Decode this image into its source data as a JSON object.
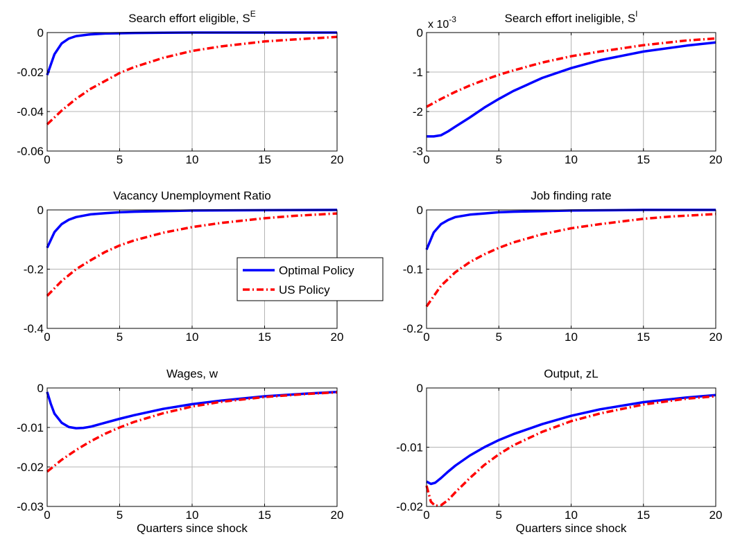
{
  "colors": {
    "optimal": "#0000ff",
    "us": "#ff0000",
    "grid": "#b4b4b4",
    "axis": "#000000",
    "background": "#ffffff"
  },
  "legend": {
    "placement": "between middle-row panels",
    "entries": [
      {
        "label": "Optimal Policy",
        "style": "solid",
        "color": "#0000ff"
      },
      {
        "label": "US Policy",
        "style": "dash-dot",
        "color": "#ff0000"
      }
    ]
  },
  "chart_data": [
    {
      "type": "line",
      "title": "Search effort eligible, S",
      "title_superscript": "E",
      "xlabel": "",
      "xlim": [
        0,
        20
      ],
      "xticks": [
        0,
        5,
        10,
        15,
        20
      ],
      "ylim": [
        -0.06,
        0
      ],
      "yticks": [
        -0.06,
        -0.04,
        -0.02,
        0
      ],
      "ytick_labels": [
        "-0.06",
        "-0.04",
        "-0.02",
        "0"
      ],
      "grid": true,
      "series": [
        {
          "name": "Optimal Policy",
          "x": [
            0,
            0.5,
            1,
            1.5,
            2,
            3,
            4,
            6,
            8,
            10,
            15,
            20
          ],
          "y": [
            -0.0215,
            -0.011,
            -0.0055,
            -0.003,
            -0.0018,
            -0.0009,
            -0.0005,
            -0.0002,
            -0.0001,
            0,
            0,
            0
          ]
        },
        {
          "name": "US Policy",
          "x": [
            0,
            1,
            2,
            3,
            4,
            5,
            6,
            8,
            10,
            12,
            15,
            17,
            20
          ],
          "y": [
            -0.0465,
            -0.0395,
            -0.0335,
            -0.0285,
            -0.0245,
            -0.0205,
            -0.0175,
            -0.0128,
            -0.0093,
            -0.007,
            -0.0045,
            -0.0035,
            -0.0022
          ]
        }
      ]
    },
    {
      "type": "line",
      "title": "Search effort ineligible, S",
      "title_superscript": "I",
      "axis_multiplier": "x 10",
      "axis_multiplier_exponent": "-3",
      "xlabel": "",
      "xlim": [
        0,
        20
      ],
      "xticks": [
        0,
        5,
        10,
        15,
        20
      ],
      "ylim": [
        -3,
        0
      ],
      "yticks": [
        -3,
        -2,
        -1,
        0
      ],
      "ytick_labels": [
        "-3",
        "-2",
        "-1",
        "0"
      ],
      "grid": true,
      "series": [
        {
          "name": "Optimal Policy",
          "x": [
            0,
            0.5,
            1,
            1.5,
            2,
            3,
            4,
            5,
            6,
            8,
            10,
            12,
            15,
            18,
            20
          ],
          "y": [
            -2.63,
            -2.63,
            -2.6,
            -2.5,
            -2.38,
            -2.15,
            -1.9,
            -1.68,
            -1.48,
            -1.15,
            -0.9,
            -0.7,
            -0.48,
            -0.33,
            -0.25
          ]
        },
        {
          "name": "US Policy",
          "x": [
            0,
            1,
            2,
            3,
            4,
            5,
            6,
            8,
            10,
            12,
            15,
            18,
            20
          ],
          "y": [
            -1.88,
            -1.68,
            -1.5,
            -1.34,
            -1.2,
            -1.07,
            -0.96,
            -0.76,
            -0.6,
            -0.48,
            -0.32,
            -0.2,
            -0.15
          ]
        }
      ]
    },
    {
      "type": "line",
      "title": "Vacancy Unemployment Ratio",
      "xlabel": "",
      "xlim": [
        0,
        20
      ],
      "xticks": [
        0,
        5,
        10,
        15,
        20
      ],
      "ylim": [
        -0.4,
        0
      ],
      "yticks": [
        -0.4,
        -0.2,
        0
      ],
      "ytick_labels": [
        "-0.4",
        "-0.2",
        "0"
      ],
      "grid": true,
      "series": [
        {
          "name": "Optimal Policy",
          "x": [
            0,
            0.5,
            1,
            1.5,
            2,
            3,
            4,
            5,
            6,
            8,
            10,
            15,
            20
          ],
          "y": [
            -0.128,
            -0.075,
            -0.048,
            -0.033,
            -0.024,
            -0.015,
            -0.011,
            -0.008,
            -0.006,
            -0.004,
            -0.002,
            -0.001,
            0
          ]
        },
        {
          "name": "US Policy",
          "x": [
            0,
            1,
            2,
            3,
            4,
            5,
            6,
            8,
            10,
            12,
            15,
            17,
            20
          ],
          "y": [
            -0.29,
            -0.24,
            -0.2,
            -0.17,
            -0.142,
            -0.12,
            -0.103,
            -0.077,
            -0.058,
            -0.044,
            -0.028,
            -0.02,
            -0.012
          ]
        }
      ]
    },
    {
      "type": "line",
      "title": "Job finding rate",
      "xlabel": "",
      "xlim": [
        0,
        20
      ],
      "xticks": [
        0,
        5,
        10,
        15,
        20
      ],
      "ylim": [
        -0.2,
        0
      ],
      "yticks": [
        -0.2,
        -0.1,
        0
      ],
      "ytick_labels": [
        "-0.2",
        "-0.1",
        "0"
      ],
      "grid": true,
      "series": [
        {
          "name": "Optimal Policy",
          "x": [
            0,
            0.5,
            1,
            1.5,
            2,
            3,
            4,
            5,
            6,
            8,
            10,
            15,
            20
          ],
          "y": [
            -0.067,
            -0.038,
            -0.024,
            -0.017,
            -0.012,
            -0.008,
            -0.006,
            -0.004,
            -0.003,
            -0.002,
            -0.001,
            0,
            0
          ]
        },
        {
          "name": "US Policy",
          "x": [
            0,
            1,
            2,
            3,
            4,
            5,
            6,
            8,
            10,
            12,
            15,
            17,
            20
          ],
          "y": [
            -0.163,
            -0.128,
            -0.105,
            -0.088,
            -0.075,
            -0.064,
            -0.055,
            -0.041,
            -0.031,
            -0.024,
            -0.015,
            -0.011,
            -0.007
          ]
        }
      ]
    },
    {
      "type": "line",
      "title": "Wages, w",
      "xlabel": "Quarters since shock",
      "xlim": [
        0,
        20
      ],
      "xticks": [
        0,
        5,
        10,
        15,
        20
      ],
      "ylim": [
        -0.03,
        0
      ],
      "yticks": [
        -0.03,
        -0.02,
        -0.01,
        0
      ],
      "ytick_labels": [
        "-0.03",
        "-0.02",
        "-0.01",
        "0"
      ],
      "grid": true,
      "series": [
        {
          "name": "Optimal Policy",
          "x": [
            0,
            0.25,
            0.5,
            1,
            1.5,
            2,
            2.5,
            3,
            4,
            5,
            6,
            8,
            10,
            12,
            15,
            18,
            20
          ],
          "y": [
            -0.001,
            -0.004,
            -0.0065,
            -0.0088,
            -0.0099,
            -0.0102,
            -0.0101,
            -0.0098,
            -0.0088,
            -0.0078,
            -0.0069,
            -0.0053,
            -0.0041,
            -0.0032,
            -0.0021,
            -0.0014,
            -0.001
          ]
        },
        {
          "name": "US Policy",
          "x": [
            0,
            1,
            2,
            3,
            4,
            5,
            6,
            8,
            10,
            12,
            15,
            18,
            20
          ],
          "y": [
            -0.0212,
            -0.0182,
            -0.0157,
            -0.0135,
            -0.0116,
            -0.01,
            -0.0086,
            -0.0064,
            -0.0047,
            -0.0035,
            -0.0023,
            -0.0015,
            -0.0011
          ]
        }
      ]
    },
    {
      "type": "line",
      "title": "Output, zL",
      "xlabel": "Quarters since shock",
      "xlim": [
        0,
        20
      ],
      "xticks": [
        0,
        5,
        10,
        15,
        20
      ],
      "ylim": [
        -0.02,
        0
      ],
      "yticks": [
        -0.02,
        -0.01,
        0
      ],
      "ytick_labels": [
        "-0.02",
        "-0.01",
        "0"
      ],
      "grid": true,
      "series": [
        {
          "name": "Optimal Policy",
          "x": [
            0,
            0.3,
            0.6,
            1,
            1.5,
            2,
            3,
            4,
            5,
            6,
            8,
            10,
            12,
            15,
            18,
            20
          ],
          "y": [
            -0.0158,
            -0.0162,
            -0.016,
            -0.0152,
            -0.0141,
            -0.0131,
            -0.0114,
            -0.01,
            -0.0088,
            -0.0078,
            -0.0061,
            -0.0047,
            -0.0036,
            -0.0024,
            -0.0016,
            -0.0012
          ]
        },
        {
          "name": "US Policy",
          "x": [
            0,
            0.3,
            0.6,
            1,
            1.5,
            2,
            3,
            4,
            5,
            6,
            8,
            10,
            12,
            15,
            18,
            20
          ],
          "y": [
            -0.0165,
            -0.0192,
            -0.0199,
            -0.0198,
            -0.0189,
            -0.0176,
            -0.0152,
            -0.013,
            -0.0112,
            -0.0097,
            -0.0074,
            -0.0056,
            -0.0043,
            -0.0028,
            -0.0018,
            -0.0014
          ]
        }
      ]
    }
  ]
}
